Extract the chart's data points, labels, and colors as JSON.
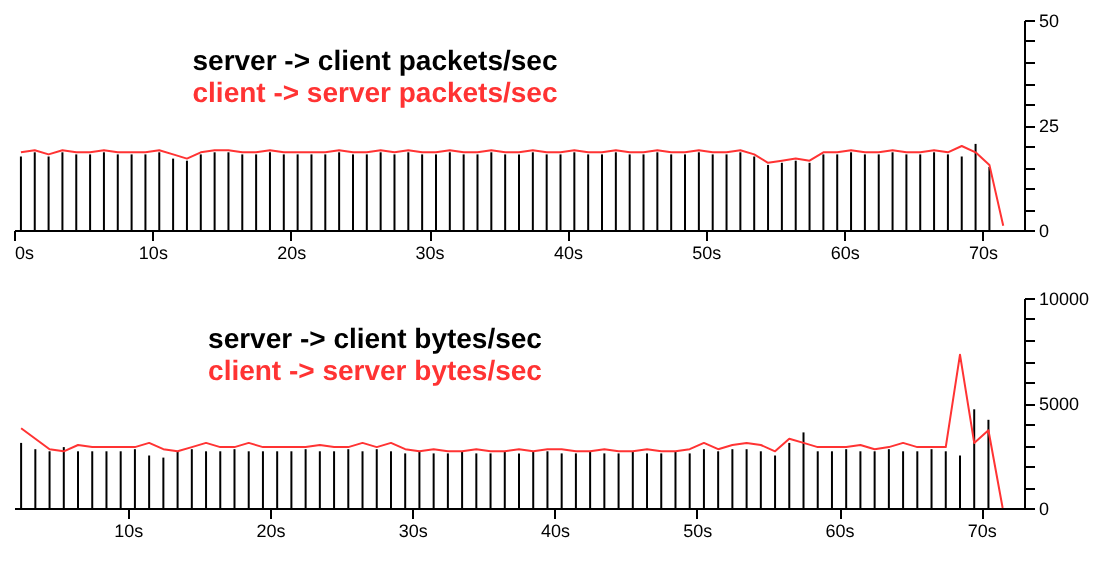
{
  "chart_data": [
    {
      "type": "bar",
      "x": [
        0.5,
        1.5,
        2.5,
        3.5,
        4.5,
        5.5,
        6.5,
        7.5,
        8.5,
        9.5,
        10.5,
        11.5,
        12.5,
        13.5,
        14.5,
        15.5,
        16.5,
        17.5,
        18.5,
        19.5,
        20.5,
        21.5,
        22.5,
        23.5,
        24.5,
        25.5,
        26.5,
        27.5,
        28.5,
        29.5,
        30.5,
        31.5,
        32.5,
        33.5,
        34.5,
        35.5,
        36.5,
        37.5,
        38.5,
        39.5,
        40.5,
        41.5,
        42.5,
        43.5,
        44.5,
        45.5,
        46.5,
        47.5,
        48.5,
        49.5,
        50.5,
        51.5,
        52.5,
        53.5,
        54.5,
        55.5,
        56.5,
        57.5,
        58.5,
        59.5,
        60.5,
        61.5,
        62.5,
        63.5,
        64.5,
        65.5,
        66.5,
        67.5,
        68.5,
        69.5,
        70.5,
        71.5
      ],
      "series": [
        {
          "name": "server -> client packets/sec",
          "color": "#000000",
          "values": [
            17.5,
            18.5,
            17.5,
            18.5,
            18,
            18,
            18.5,
            18,
            18,
            18,
            18.5,
            17,
            16.5,
            18,
            18.5,
            18.5,
            18,
            18,
            18.5,
            18,
            18,
            18,
            18,
            18.5,
            18,
            18,
            18.5,
            18,
            18.5,
            18,
            18,
            18.5,
            18,
            18,
            18.5,
            18,
            18,
            18.5,
            18,
            18,
            18.5,
            18,
            18,
            18.5,
            18,
            18,
            18.5,
            18,
            18,
            18.5,
            18,
            18,
            18.5,
            17.5,
            15.5,
            16,
            16.5,
            16,
            18,
            18,
            18.5,
            18,
            18,
            18.5,
            18,
            18,
            18.5,
            18,
            17.5,
            20.5,
            15,
            null
          ]
        },
        {
          "name": "client -> server packets/sec",
          "type": "line",
          "color": "#ff3333",
          "values": [
            18.5,
            19,
            18,
            19,
            18.5,
            18.5,
            19,
            18.5,
            18.5,
            18.5,
            19,
            18,
            17,
            18.5,
            19,
            19,
            18.5,
            18.5,
            19,
            18.5,
            18.5,
            18.5,
            18.5,
            19,
            18.5,
            18.5,
            19,
            18.5,
            19,
            18.5,
            18.5,
            19,
            18.5,
            18.5,
            19,
            18.5,
            18.5,
            19,
            18.5,
            18.5,
            19,
            18.5,
            18.5,
            19,
            18.5,
            18.5,
            19,
            18.5,
            18.5,
            19,
            18.5,
            18.5,
            19,
            18,
            16,
            16.5,
            17,
            16.5,
            18.5,
            18.5,
            19,
            18.5,
            18.5,
            19,
            18.5,
            18.5,
            19,
            18.5,
            20,
            18.5,
            15.5,
            1
          ]
        }
      ],
      "xlim": [
        0,
        73
      ],
      "xticks": [
        {
          "value": 0,
          "label": "0s"
        },
        {
          "value": 10,
          "label": "10s"
        },
        {
          "value": 20,
          "label": "20s"
        },
        {
          "value": 30,
          "label": "30s"
        },
        {
          "value": 40,
          "label": "40s"
        },
        {
          "value": 50,
          "label": "50s"
        },
        {
          "value": 60,
          "label": "60s"
        },
        {
          "value": 70,
          "label": "70s"
        }
      ],
      "ylim": [
        0,
        50
      ],
      "yticks": [
        0,
        {
          "value": 5,
          "label": null
        },
        {
          "value": 10,
          "label": null
        },
        {
          "value": 15,
          "label": null
        },
        {
          "value": 20,
          "label": null
        },
        25,
        {
          "value": 30,
          "label": null
        },
        {
          "value": 35,
          "label": null
        },
        {
          "value": 40,
          "label": null
        },
        {
          "value": 45,
          "label": null
        },
        50
      ],
      "grid": false,
      "legend": "top left"
    },
    {
      "type": "bar",
      "x": [
        2.5,
        3.5,
        4.5,
        5.5,
        6.5,
        7.5,
        8.5,
        9.5,
        10.5,
        11.5,
        12.5,
        13.5,
        14.5,
        15.5,
        16.5,
        17.5,
        18.5,
        19.5,
        20.5,
        21.5,
        22.5,
        23.5,
        24.5,
        25.5,
        26.5,
        27.5,
        28.5,
        29.5,
        30.5,
        31.5,
        32.5,
        33.5,
        34.5,
        35.5,
        36.5,
        37.5,
        38.5,
        39.5,
        40.5,
        41.5,
        42.5,
        43.5,
        44.5,
        45.5,
        46.5,
        47.5,
        48.5,
        49.5,
        50.5,
        51.5,
        52.5,
        53.5,
        54.5,
        55.5,
        56.5,
        57.5,
        58.5,
        59.5,
        60.5,
        61.5,
        62.5,
        63.5,
        64.5,
        65.5,
        66.5,
        67.5,
        68.5,
        69.5,
        70.5,
        71.5
      ],
      "series": [
        {
          "name": "server -> client bytes/sec",
          "color": "#000000",
          "values": [
            3100,
            2800,
            2700,
            2900,
            2700,
            2700,
            2700,
            2700,
            2800,
            2500,
            2400,
            2700,
            2800,
            2700,
            2700,
            2800,
            2700,
            2700,
            2700,
            2700,
            2800,
            2700,
            2700,
            2800,
            2700,
            2800,
            2700,
            2600,
            2700,
            2600,
            2600,
            2700,
            2600,
            2600,
            2700,
            2600,
            2700,
            2700,
            2600,
            2600,
            2700,
            2600,
            2600,
            2700,
            2600,
            2600,
            2700,
            2600,
            2800,
            2700,
            2800,
            2800,
            2700,
            2500,
            3100,
            3600,
            2700,
            2700,
            2800,
            2700,
            2700,
            2800,
            2700,
            2700,
            2800,
            2700,
            2500,
            4700,
            4200,
            null
          ]
        },
        {
          "name": "client -> server bytes/sec",
          "type": "line",
          "color": "#ff3333",
          "values": [
            3800,
            3300,
            2800,
            2700,
            3000,
            2900,
            2900,
            2900,
            2900,
            3100,
            2800,
            2700,
            2900,
            3100,
            2900,
            2900,
            3100,
            2900,
            2900,
            2900,
            2900,
            3000,
            2900,
            2900,
            3100,
            2900,
            3100,
            2800,
            2700,
            2800,
            2700,
            2700,
            2800,
            2700,
            2700,
            2800,
            2700,
            2800,
            2800,
            2700,
            2700,
            2800,
            2700,
            2700,
            2800,
            2700,
            2700,
            2800,
            3100,
            2800,
            3000,
            3100,
            3000,
            2700,
            3300,
            3100,
            2900,
            2900,
            2900,
            3000,
            2800,
            2900,
            3100,
            2900,
            2900,
            2900,
            7300,
            3100,
            3700,
            0
          ]
        }
      ],
      "xlim": [
        2,
        73
      ],
      "xticks": [
        {
          "value": 10,
          "label": "10s"
        },
        {
          "value": 20,
          "label": "20s"
        },
        {
          "value": 30,
          "label": "30s"
        },
        {
          "value": 40,
          "label": "40s"
        },
        {
          "value": 50,
          "label": "50s"
        },
        {
          "value": 60,
          "label": "60s"
        },
        {
          "value": 70,
          "label": "70s"
        }
      ],
      "ylim": [
        0,
        10000
      ],
      "yticks": [
        0,
        {
          "value": 1000,
          "label": null
        },
        {
          "value": 2000,
          "label": null
        },
        {
          "value": 3000,
          "label": null
        },
        {
          "value": 4000,
          "label": null
        },
        5000,
        {
          "value": 6000,
          "label": null
        },
        {
          "value": 7000,
          "label": null
        },
        {
          "value": 8000,
          "label": null
        },
        {
          "value": 9000,
          "label": null
        },
        10000
      ],
      "grid": false,
      "legend": "top left"
    }
  ]
}
